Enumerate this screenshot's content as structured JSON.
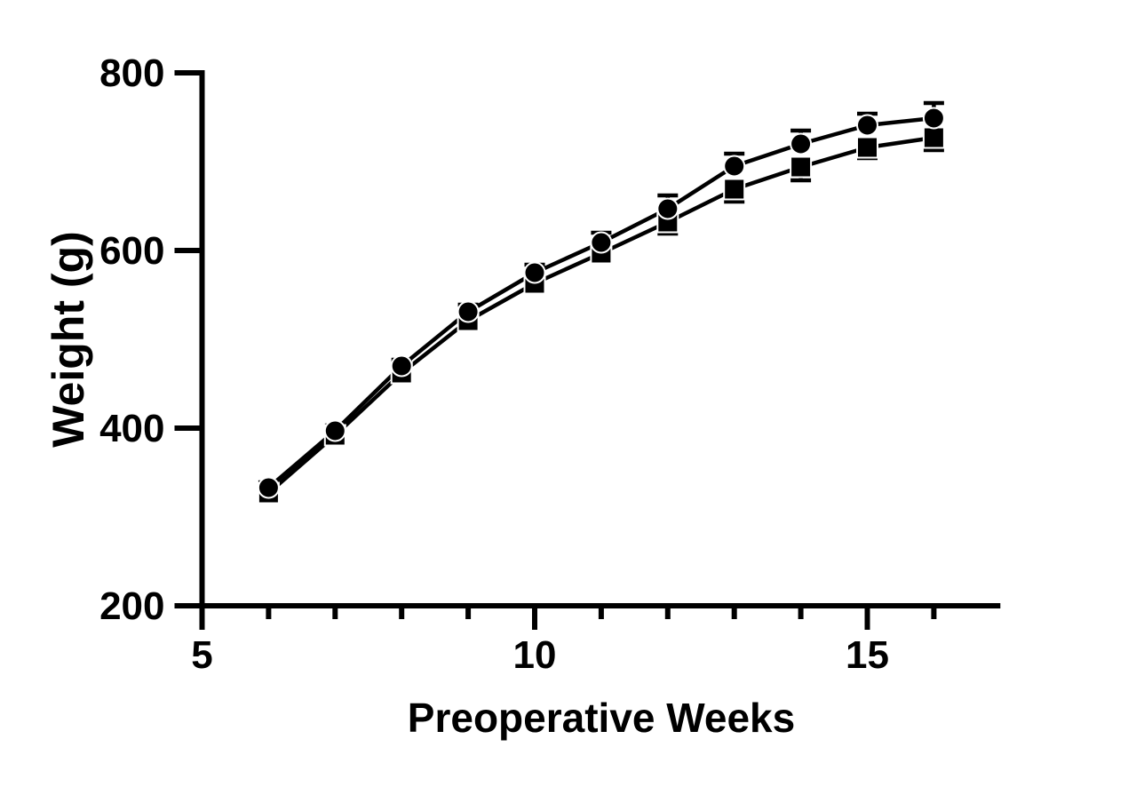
{
  "chart_data": {
    "type": "line",
    "title": "",
    "xlabel": "Preoperative Weeks",
    "ylabel": "Weight (g)",
    "xlim": [
      5,
      17
    ],
    "ylim": [
      200,
      800
    ],
    "x_major_ticks": [
      5,
      10,
      15
    ],
    "x_minor_ticks": [
      6,
      7,
      8,
      9,
      11,
      12,
      13,
      14,
      16
    ],
    "y_ticks": [
      200,
      400,
      600,
      800
    ],
    "grid": false,
    "legend": "none",
    "x": [
      6,
      7,
      8,
      9,
      10,
      11,
      12,
      13,
      14,
      15,
      16
    ],
    "series": [
      {
        "name": "circle-series",
        "marker": "circle",
        "values": [
          333,
          397,
          470,
          531,
          575,
          609,
          647,
          695,
          720,
          741,
          749
        ],
        "error": [
          6,
          6,
          7,
          8,
          9,
          11,
          15,
          14,
          15,
          13,
          17
        ],
        "error_direction": "up"
      },
      {
        "name": "square-series",
        "marker": "square",
        "values": [
          327,
          392,
          462,
          521,
          563,
          597,
          632,
          669,
          694,
          716,
          727
        ],
        "error": [
          6,
          6,
          7,
          8,
          9,
          10,
          13,
          14,
          15,
          12,
          14
        ],
        "error_direction": "down"
      }
    ],
    "colors": {
      "ink": "#000000",
      "background": "#ffffff"
    }
  }
}
